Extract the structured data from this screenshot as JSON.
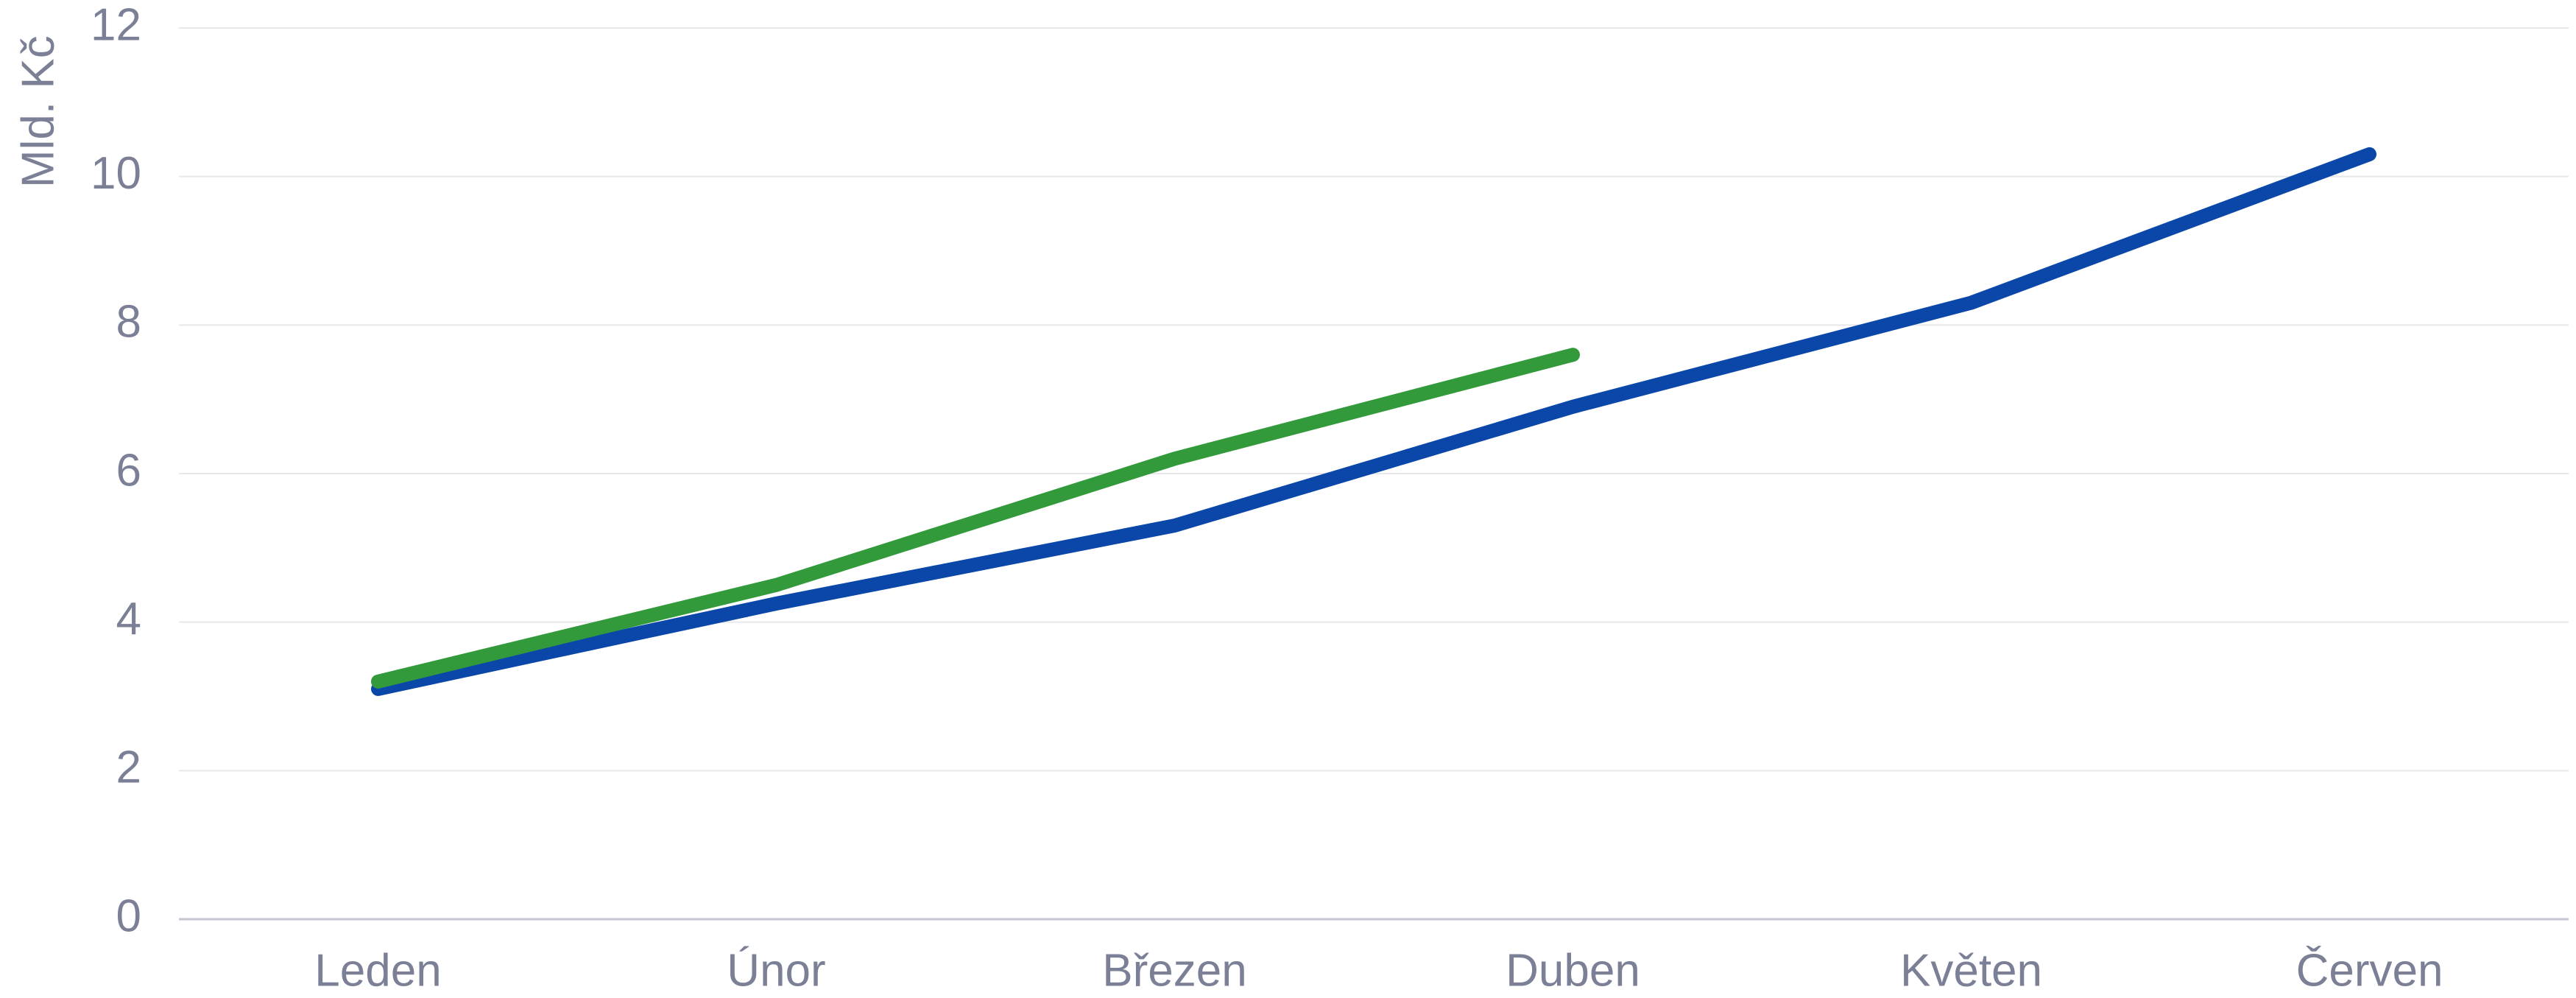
{
  "chart_data": {
    "type": "line",
    "y_label": "Mld. Kč",
    "categories": [
      "Leden",
      "Únor",
      "Březen",
      "Duben",
      "Květen",
      "Červen"
    ],
    "series": [
      {
        "color": "#0a47a9",
        "values": [
          3.1,
          4.25,
          5.3,
          6.9,
          8.3,
          10.3
        ]
      },
      {
        "color": "#339a3c",
        "values": [
          3.2,
          4.5,
          6.2,
          7.6,
          null,
          null
        ]
      }
    ],
    "ylim": [
      0,
      12
    ],
    "yticks": [
      0,
      2,
      4,
      6,
      8,
      10,
      12
    ],
    "grid": true
  }
}
